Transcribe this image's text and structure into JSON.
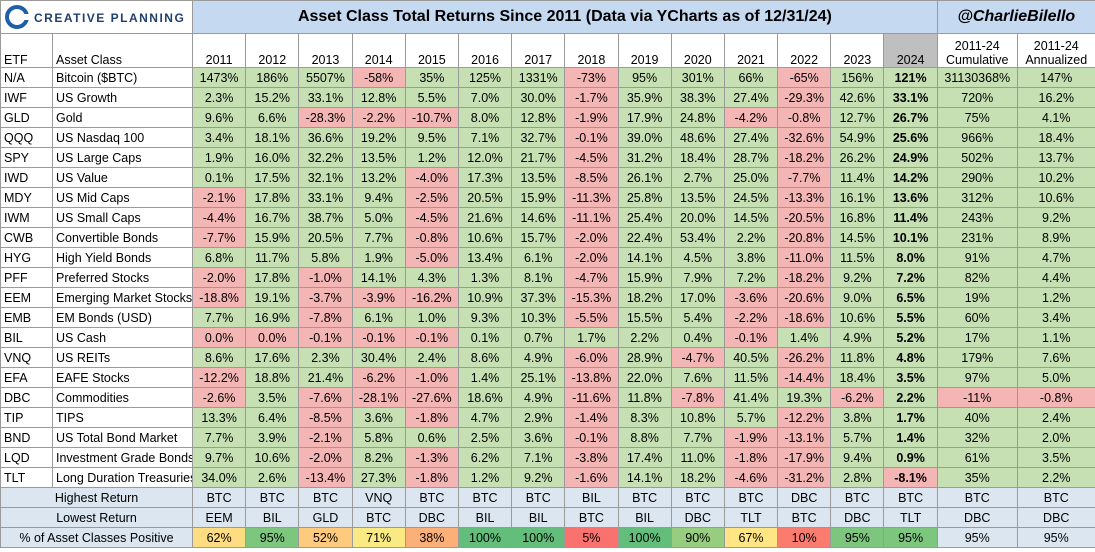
{
  "header": {
    "logo": "CREATIVE PLANNING",
    "title": "Asset Class Total Returns Since 2011 (Data via YCharts as of 12/31/24)",
    "handle": "@CharlieBilello"
  },
  "table": {
    "columns": [
      "ETF",
      "Asset Class",
      "2011",
      "2012",
      "2013",
      "2014",
      "2015",
      "2016",
      "2017",
      "2018",
      "2019",
      "2020",
      "2021",
      "2022",
      "2023",
      "2024",
      "2011-24 Cumulative",
      "2011-24 Annualized"
    ],
    "rows": [
      [
        "N/A",
        "Bitcoin ($BTC)",
        "1473%",
        "186%",
        "5507%",
        "-58%",
        "35%",
        "125%",
        "1331%",
        "-73%",
        "95%",
        "301%",
        "66%",
        "-65%",
        "156%",
        "121%",
        "31130368%",
        "147%"
      ],
      [
        "IWF",
        "US Growth",
        "2.3%",
        "15.2%",
        "33.1%",
        "12.8%",
        "5.5%",
        "7.0%",
        "30.0%",
        "-1.7%",
        "35.9%",
        "38.3%",
        "27.4%",
        "-29.3%",
        "42.6%",
        "33.1%",
        "720%",
        "16.2%"
      ],
      [
        "GLD",
        "Gold",
        "9.6%",
        "6.6%",
        "-28.3%",
        "-2.2%",
        "-10.7%",
        "8.0%",
        "12.8%",
        "-1.9%",
        "17.9%",
        "24.8%",
        "-4.2%",
        "-0.8%",
        "12.7%",
        "26.7%",
        "75%",
        "4.1%"
      ],
      [
        "QQQ",
        "US Nasdaq 100",
        "3.4%",
        "18.1%",
        "36.6%",
        "19.2%",
        "9.5%",
        "7.1%",
        "32.7%",
        "-0.1%",
        "39.0%",
        "48.6%",
        "27.4%",
        "-32.6%",
        "54.9%",
        "25.6%",
        "966%",
        "18.4%"
      ],
      [
        "SPY",
        "US Large Caps",
        "1.9%",
        "16.0%",
        "32.2%",
        "13.5%",
        "1.2%",
        "12.0%",
        "21.7%",
        "-4.5%",
        "31.2%",
        "18.4%",
        "28.7%",
        "-18.2%",
        "26.2%",
        "24.9%",
        "502%",
        "13.7%"
      ],
      [
        "IWD",
        "US Value",
        "0.1%",
        "17.5%",
        "32.1%",
        "13.2%",
        "-4.0%",
        "17.3%",
        "13.5%",
        "-8.5%",
        "26.1%",
        "2.7%",
        "25.0%",
        "-7.7%",
        "11.4%",
        "14.2%",
        "290%",
        "10.2%"
      ],
      [
        "MDY",
        "US Mid Caps",
        "-2.1%",
        "17.8%",
        "33.1%",
        "9.4%",
        "-2.5%",
        "20.5%",
        "15.9%",
        "-11.3%",
        "25.8%",
        "13.5%",
        "24.5%",
        "-13.3%",
        "16.1%",
        "13.6%",
        "312%",
        "10.6%"
      ],
      [
        "IWM",
        "US Small Caps",
        "-4.4%",
        "16.7%",
        "38.7%",
        "5.0%",
        "-4.5%",
        "21.6%",
        "14.6%",
        "-11.1%",
        "25.4%",
        "20.0%",
        "14.5%",
        "-20.5%",
        "16.8%",
        "11.4%",
        "243%",
        "9.2%"
      ],
      [
        "CWB",
        "Convertible Bonds",
        "-7.7%",
        "15.9%",
        "20.5%",
        "7.7%",
        "-0.8%",
        "10.6%",
        "15.7%",
        "-2.0%",
        "22.4%",
        "53.4%",
        "2.2%",
        "-20.8%",
        "14.5%",
        "10.1%",
        "231%",
        "8.9%"
      ],
      [
        "HYG",
        "High Yield Bonds",
        "6.8%",
        "11.7%",
        "5.8%",
        "1.9%",
        "-5.0%",
        "13.4%",
        "6.1%",
        "-2.0%",
        "14.1%",
        "4.5%",
        "3.8%",
        "-11.0%",
        "11.5%",
        "8.0%",
        "91%",
        "4.7%"
      ],
      [
        "PFF",
        "Preferred Stocks",
        "-2.0%",
        "17.8%",
        "-1.0%",
        "14.1%",
        "4.3%",
        "1.3%",
        "8.1%",
        "-4.7%",
        "15.9%",
        "7.9%",
        "7.2%",
        "-18.2%",
        "9.2%",
        "7.2%",
        "82%",
        "4.4%"
      ],
      [
        "EEM",
        "Emerging Market Stocks",
        "-18.8%",
        "19.1%",
        "-3.7%",
        "-3.9%",
        "-16.2%",
        "10.9%",
        "37.3%",
        "-15.3%",
        "18.2%",
        "17.0%",
        "-3.6%",
        "-20.6%",
        "9.0%",
        "6.5%",
        "19%",
        "1.2%"
      ],
      [
        "EMB",
        "EM Bonds (USD)",
        "7.7%",
        "16.9%",
        "-7.8%",
        "6.1%",
        "1.0%",
        "9.3%",
        "10.3%",
        "-5.5%",
        "15.5%",
        "5.4%",
        "-2.2%",
        "-18.6%",
        "10.6%",
        "5.5%",
        "60%",
        "3.4%"
      ],
      [
        "BIL",
        "US Cash",
        "0.0%",
        "0.0%",
        "-0.1%",
        "-0.1%",
        "-0.1%",
        "0.1%",
        "0.7%",
        "1.7%",
        "2.2%",
        "0.4%",
        "-0.1%",
        "1.4%",
        "4.9%",
        "5.2%",
        "17%",
        "1.1%"
      ],
      [
        "VNQ",
        "US REITs",
        "8.6%",
        "17.6%",
        "2.3%",
        "30.4%",
        "2.4%",
        "8.6%",
        "4.9%",
        "-6.0%",
        "28.9%",
        "-4.7%",
        "40.5%",
        "-26.2%",
        "11.8%",
        "4.8%",
        "179%",
        "7.6%"
      ],
      [
        "EFA",
        "EAFE Stocks",
        "-12.2%",
        "18.8%",
        "21.4%",
        "-6.2%",
        "-1.0%",
        "1.4%",
        "25.1%",
        "-13.8%",
        "22.0%",
        "7.6%",
        "11.5%",
        "-14.4%",
        "18.4%",
        "3.5%",
        "97%",
        "5.0%"
      ],
      [
        "DBC",
        "Commodities",
        "-2.6%",
        "3.5%",
        "-7.6%",
        "-28.1%",
        "-27.6%",
        "18.6%",
        "4.9%",
        "-11.6%",
        "11.8%",
        "-7.8%",
        "41.4%",
        "19.3%",
        "-6.2%",
        "2.2%",
        "-11%",
        "-0.8%"
      ],
      [
        "TIP",
        "TIPS",
        "13.3%",
        "6.4%",
        "-8.5%",
        "3.6%",
        "-1.8%",
        "4.7%",
        "2.9%",
        "-1.4%",
        "8.3%",
        "10.8%",
        "5.7%",
        "-12.2%",
        "3.8%",
        "1.7%",
        "40%",
        "2.4%"
      ],
      [
        "BND",
        "US Total Bond Market",
        "7.7%",
        "3.9%",
        "-2.1%",
        "5.8%",
        "0.6%",
        "2.5%",
        "3.6%",
        "-0.1%",
        "8.8%",
        "7.7%",
        "-1.9%",
        "-13.1%",
        "5.7%",
        "1.4%",
        "32%",
        "2.0%"
      ],
      [
        "LQD",
        "Investment Grade Bonds",
        "9.7%",
        "10.6%",
        "-2.0%",
        "8.2%",
        "-1.3%",
        "6.2%",
        "7.1%",
        "-3.8%",
        "17.4%",
        "11.0%",
        "-1.8%",
        "-17.9%",
        "9.4%",
        "0.9%",
        "61%",
        "3.5%"
      ],
      [
        "TLT",
        "Long Duration Treasuries",
        "34.0%",
        "2.6%",
        "-13.4%",
        "27.3%",
        "-1.8%",
        "1.2%",
        "9.2%",
        "-1.6%",
        "14.1%",
        "18.2%",
        "-4.6%",
        "-31.2%",
        "2.8%",
        "-8.1%",
        "35%",
        "2.2%"
      ]
    ],
    "summary": [
      [
        "Highest Return",
        "BTC",
        "BTC",
        "BTC",
        "VNQ",
        "BTC",
        "BTC",
        "BTC",
        "BIL",
        "BTC",
        "BTC",
        "BTC",
        "DBC",
        "BTC",
        "BTC",
        "BTC",
        "BTC"
      ],
      [
        "Lowest Return",
        "EEM",
        "BIL",
        "GLD",
        "BTC",
        "DBC",
        "BIL",
        "BIL",
        "BTC",
        "BIL",
        "DBC",
        "TLT",
        "BTC",
        "DBC",
        "TLT",
        "DBC",
        "DBC"
      ],
      [
        "% of Asset Classes Positive",
        "62%",
        "95%",
        "52%",
        "71%",
        "38%",
        "100%",
        "100%",
        "5%",
        "100%",
        "90%",
        "67%",
        "10%",
        "95%",
        "95%",
        "95%",
        "95%"
      ]
    ]
  }
}
